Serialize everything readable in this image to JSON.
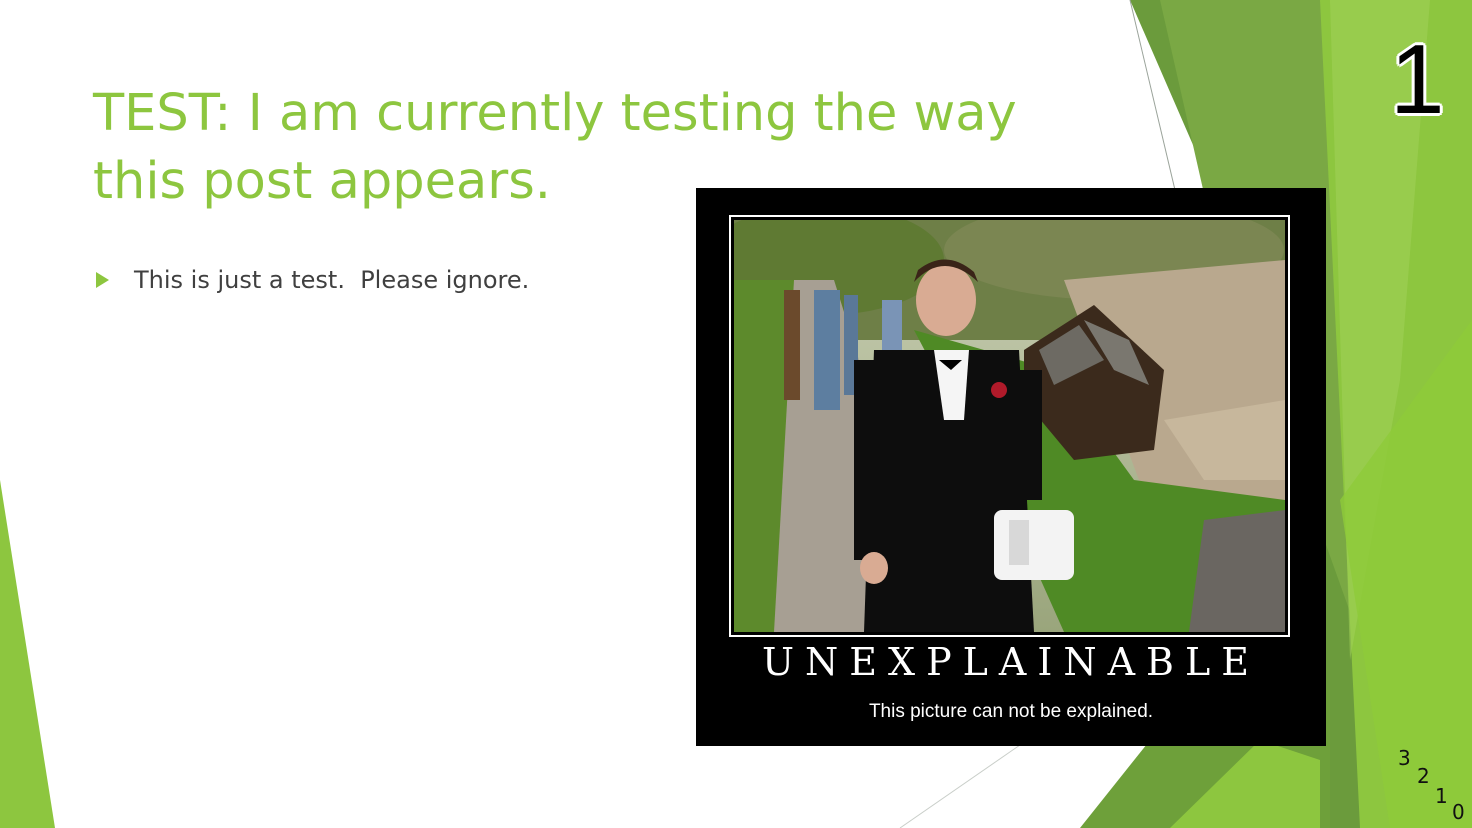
{
  "slide": {
    "title": "TEST:  I am currently testing the way this post appears.",
    "bullets": [
      "This is just a test.  Please ignore."
    ],
    "slide_number": "1",
    "countdown": [
      "3",
      "2",
      "1",
      "0"
    ]
  },
  "poster": {
    "heading": "UNEXPLAINABLE",
    "caption": "This picture can not be explained."
  },
  "colors": {
    "accent_green": "#8dc63f",
    "body_text": "#404040",
    "poster_bg": "#000000"
  },
  "icons": {
    "bullet": "triangle-right-icon"
  }
}
